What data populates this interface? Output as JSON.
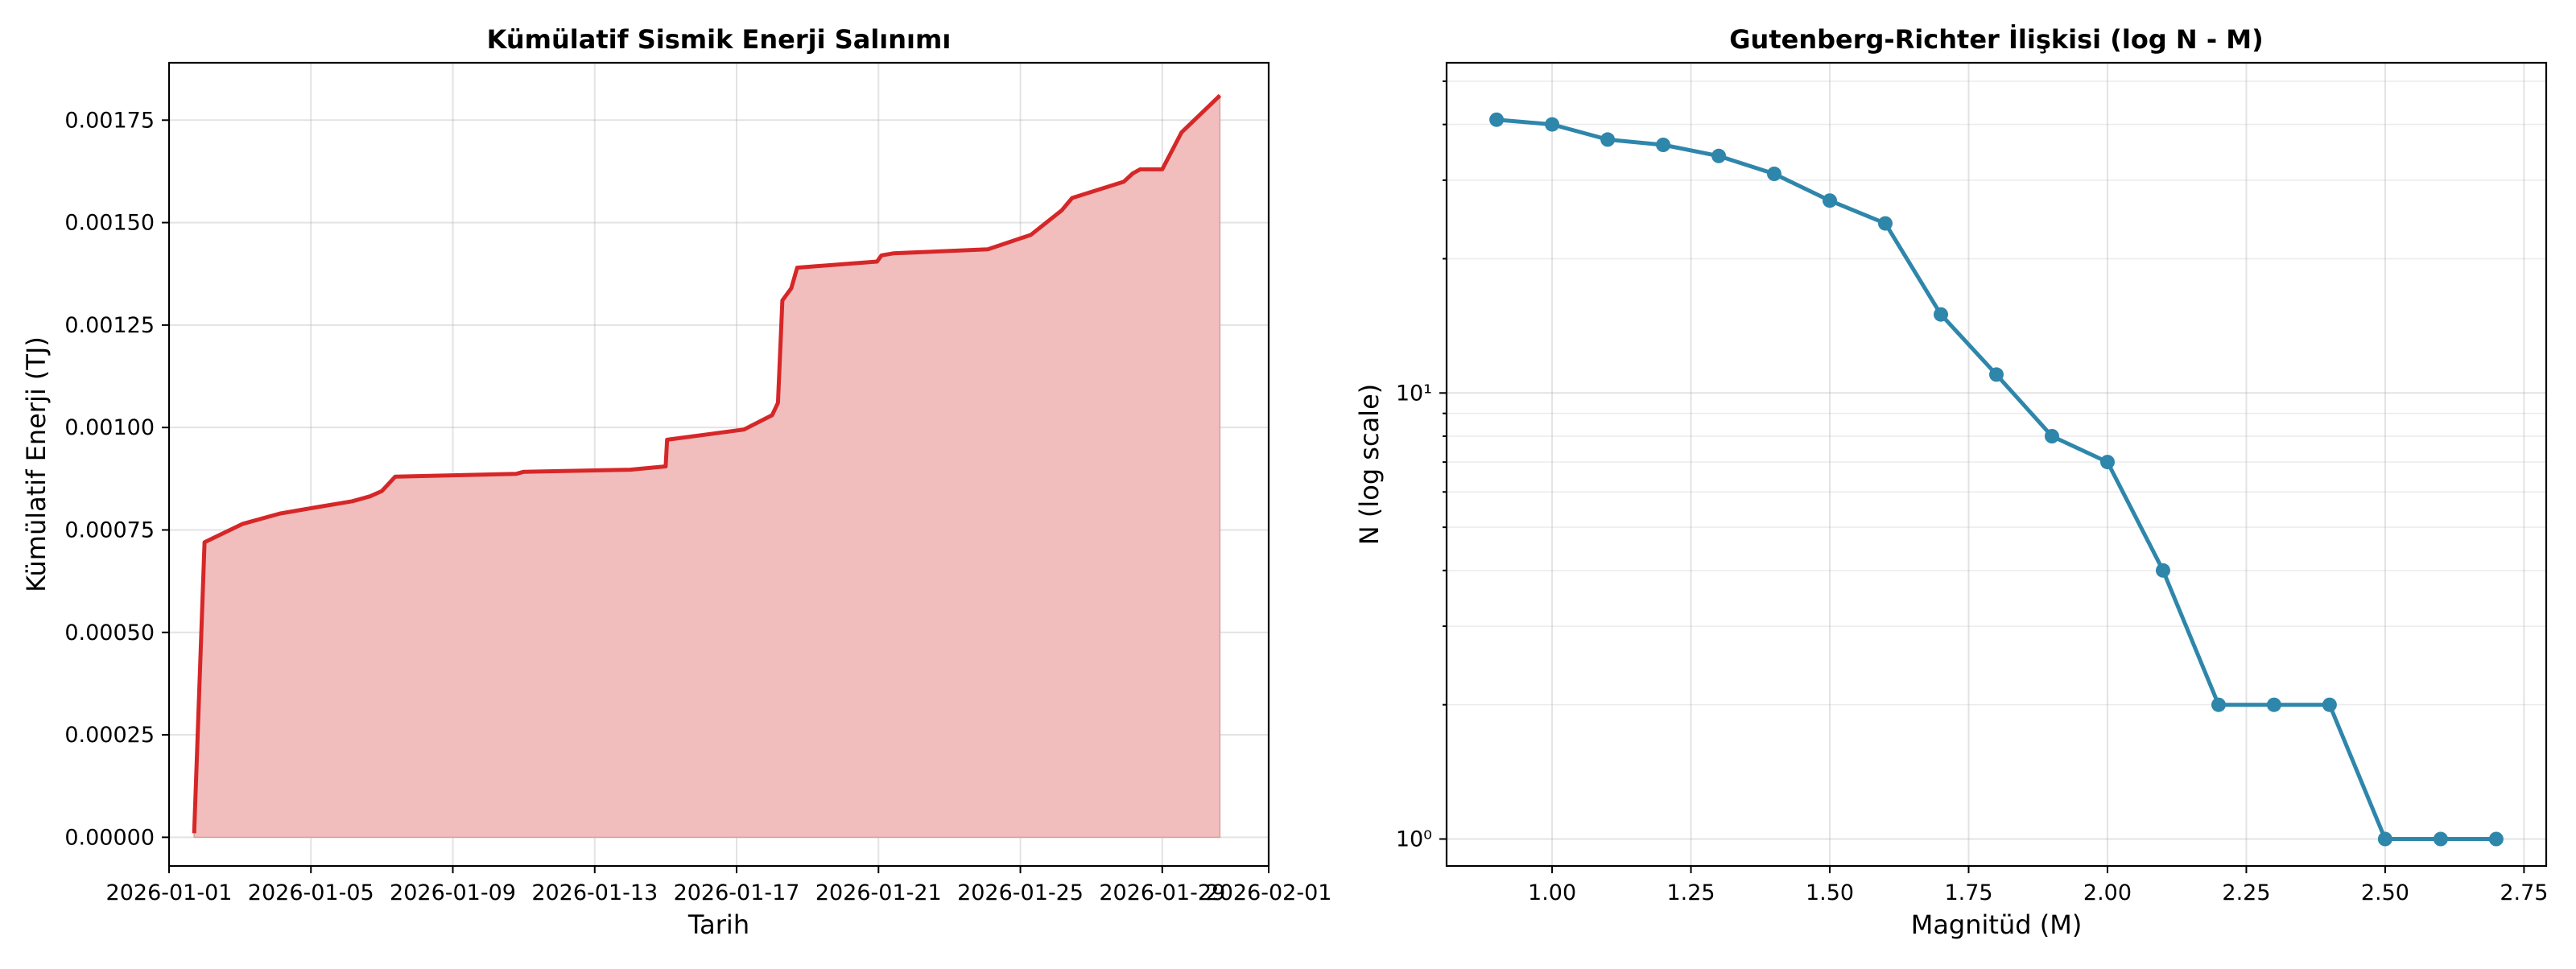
{
  "chart_data": [
    {
      "type": "area",
      "title": "Kümülatif Sismik Enerji Salınımı",
      "xlabel": "Tarih",
      "ylabel": "Kümülatif Enerji (TJ)",
      "xlim": [
        "2026-01-01T00:00",
        "2026-02-01T00:00"
      ],
      "ylim": [
        -7e-05,
        0.00189
      ],
      "x_ticks": [
        "2026-01-01",
        "2026-01-05",
        "2026-01-09",
        "2026-01-13",
        "2026-01-17",
        "2026-01-21",
        "2026-01-25",
        "2026-01-29",
        "2026-02-01"
      ],
      "y_ticks": [
        "0.00000",
        "0.00025",
        "0.00050",
        "0.00075",
        "0.00100",
        "0.00125",
        "0.00150",
        "0.00175"
      ],
      "grid": true,
      "line_color": "#d62728",
      "fill_color": "#f2bdbd",
      "series": [
        {
          "x": [
            "2026-01-01T17:00",
            "2026-01-02T00:00",
            "2026-01-03T02:00",
            "2026-01-04T03:00",
            "2026-01-05T03:00",
            "2026-01-06T04:00",
            "2026-01-06T16:00",
            "2026-01-07T00:00",
            "2026-01-07T09:00",
            "2026-01-10T19:00",
            "2026-01-11T00:00",
            "2026-01-14T00:00",
            "2026-01-15T00:00",
            "2026-01-15T01:00",
            "2026-01-17T05:00",
            "2026-01-18T00:00",
            "2026-01-18T04:00",
            "2026-01-18T07:00",
            "2026-01-18T09:00",
            "2026-01-18T13:00",
            "2026-01-18T17:00",
            "2026-01-20T23:00",
            "2026-01-21T02:00",
            "2026-01-21T10:00",
            "2026-01-24T02:00",
            "2026-01-25T07:00",
            "2026-01-26T04:00",
            "2026-01-26T11:00",
            "2026-01-27T22:00",
            "2026-01-28T04:00",
            "2026-01-28T09:00",
            "2026-01-29T00:00",
            "2026-01-29T13:00",
            "2026-01-30T15:00"
          ],
          "y": [
            1e-05,
            0.00072,
            0.000765,
            0.00079,
            0.000805,
            0.00082,
            0.000832,
            0.000845,
            0.00088,
            0.000887,
            0.000892,
            0.000897,
            0.000905,
            0.00097,
            0.000995,
            0.00103,
            0.00106,
            0.00131,
            0.00132,
            0.00134,
            0.00139,
            0.001405,
            0.00142,
            0.001425,
            0.001435,
            0.00147,
            0.00153,
            0.00156,
            0.0016,
            0.00162,
            0.00163,
            0.00163,
            0.00172,
            0.00181
          ]
        }
      ]
    },
    {
      "type": "line",
      "title": "Gutenberg-Richter İlişkisi (log N - M)",
      "xlabel": "Magnitüd (M)",
      "ylabel": "N (log scale)",
      "xlim": [
        0.81,
        2.79
      ],
      "ylim": [
        0.87,
        55
      ],
      "yscale": "log",
      "x_ticks": [
        "1.00",
        "1.25",
        "1.50",
        "1.75",
        "2.00",
        "2.25",
        "2.50",
        "2.75"
      ],
      "y_ticks": [
        "10⁰",
        "10¹"
      ],
      "grid": true,
      "line_color": "#2e86ab",
      "series": [
        {
          "x": [
            0.9,
            1.0,
            1.1,
            1.2,
            1.3,
            1.4,
            1.5,
            1.6,
            1.7,
            1.8,
            1.9,
            2.0,
            2.1,
            2.2,
            2.3,
            2.4,
            2.5,
            2.6,
            2.7
          ],
          "y": [
            41,
            40,
            37,
            36,
            34,
            31,
            27,
            24,
            15,
            11,
            8,
            7,
            4,
            2,
            2,
            2,
            1,
            1,
            1
          ]
        }
      ]
    }
  ]
}
